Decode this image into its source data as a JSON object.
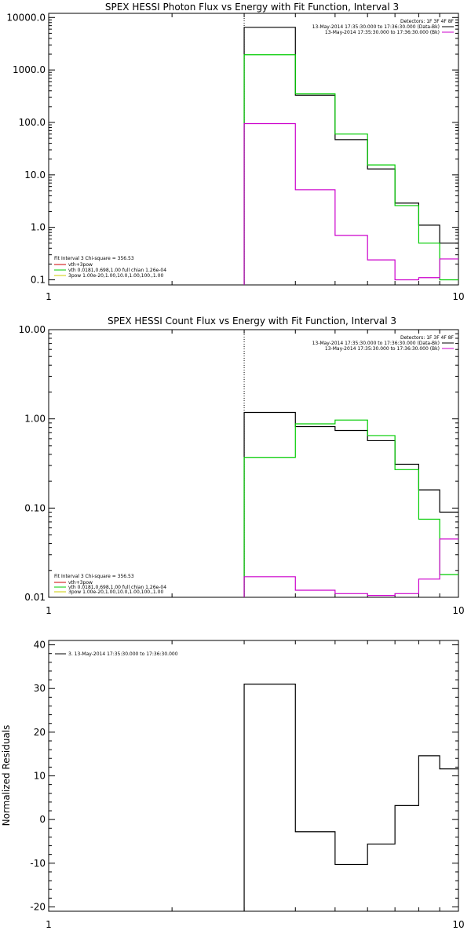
{
  "chart_data": [
    {
      "type": "line",
      "plot_style": "step",
      "title": "SPEX HESSI Photon Flux vs Energy with Fit Function, Interval 3",
      "xscale": "log",
      "yscale": "log",
      "xlim": [
        1,
        10
      ],
      "ylim": [
        0.08,
        12000
      ],
      "xtick_labels": [
        "1",
        "10"
      ],
      "ytick_labels": [
        "0.1",
        "1.0",
        "10.0",
        "100.0",
        "1000.0",
        "10000.0"
      ],
      "ytick_values": [
        0.1,
        1,
        10,
        100,
        1000,
        10000
      ],
      "legend_top_right": {
        "header": "Detectors: 1F 3F 4F 8F",
        "items": [
          {
            "label": "13-May-2014 17:35:30.000 to 17:36:30.000 (Data-Bk)",
            "color": "#000000"
          },
          {
            "label": "13-May-2014 17:35:30.000 to 17:36:30.000 (Bk)",
            "color": "#cc00cc"
          }
        ]
      },
      "legend_bottom_left": {
        "header": "Fit Interval  3   Chi-square = 356.53",
        "items": [
          {
            "label": "vth+3pow",
            "color": "#cc0000"
          },
          {
            "label": "vth 0.0181,0.698,1.00  full chian 1.26e-04",
            "color": "#00cc00"
          },
          {
            "label": "3pow 1.00e-20,1.00,10.0,1.00,100.,1.00",
            "color": "#cccc00"
          }
        ]
      },
      "vline_x": 3,
      "bin_edges": [
        3,
        4,
        5,
        6,
        7,
        8,
        9,
        10
      ],
      "series": [
        {
          "name": "Data-Bk",
          "color": "#000000",
          "values": [
            6500,
            330,
            47,
            13,
            2.9,
            1.1,
            0.5
          ]
        },
        {
          "name": "vth",
          "color": "#00cc00",
          "values": [
            1950,
            350,
            60,
            15.5,
            2.6,
            0.5,
            0.1
          ]
        },
        {
          "name": "Bk",
          "color": "#cc00cc",
          "values": [
            95,
            5.2,
            0.7,
            0.24,
            0.1,
            0.11,
            0.25
          ]
        }
      ]
    },
    {
      "type": "line",
      "plot_style": "step",
      "title": "SPEX HESSI Count Flux vs Energy with Fit Function, Interval 3",
      "xscale": "log",
      "yscale": "log",
      "xlim": [
        1,
        10
      ],
      "ylim": [
        0.01,
        10
      ],
      "xtick_labels": [
        "1",
        "10"
      ],
      "ytick_labels": [
        "0.01",
        "0.10",
        "1.00",
        "10.00"
      ],
      "ytick_values": [
        0.01,
        0.1,
        1,
        10
      ],
      "legend_top_right": {
        "header": "Detectors: 1F 3F 4F 8F",
        "items": [
          {
            "label": "13-May-2014 17:35:30.000 to 17:36:30.000 (Data-Bk)",
            "color": "#000000"
          },
          {
            "label": "13-May-2014 17:35:30.000 to 17:36:30.000 (Bk)",
            "color": "#cc00cc"
          }
        ]
      },
      "legend_bottom_left": {
        "header": "Fit Interval  3   Chi-square = 356.53",
        "items": [
          {
            "label": "vth+3pow",
            "color": "#cc0000"
          },
          {
            "label": "vth 0.0181,0.698,1.00  full chian 1.26e-04",
            "color": "#00cc00"
          },
          {
            "label": "3pow 1.00e-20,1.00,10.0,1.00,100.,1.00",
            "color": "#cccc00"
          }
        ]
      },
      "vline_x": 3,
      "bin_edges": [
        3,
        4,
        5,
        6,
        7,
        8,
        9,
        10
      ],
      "series": [
        {
          "name": "Data-Bk",
          "color": "#000000",
          "values": [
            1.18,
            0.82,
            0.74,
            0.57,
            0.31,
            0.16,
            0.09
          ]
        },
        {
          "name": "vth",
          "color": "#00cc00",
          "values": [
            0.37,
            0.88,
            0.97,
            0.65,
            0.27,
            0.075,
            0.018
          ]
        },
        {
          "name": "Bk",
          "color": "#cc00cc",
          "values": [
            0.017,
            0.012,
            0.011,
            0.0105,
            0.011,
            0.016,
            0.045
          ]
        }
      ]
    },
    {
      "type": "line",
      "plot_style": "step",
      "title": "",
      "ylabel": "Normalized Residuals",
      "xscale": "log",
      "yscale": "linear",
      "xlim": [
        1,
        10
      ],
      "ylim": [
        -21,
        41
      ],
      "xtick_labels": [
        "1",
        "10"
      ],
      "ytick_labels": [
        "-20",
        "-10",
        "0",
        "10",
        "20",
        "30",
        "40"
      ],
      "ytick_values": [
        -20,
        -10,
        0,
        10,
        20,
        30,
        40
      ],
      "legend_top_left": {
        "items": [
          {
            "label": "3. 13-May-2014 17:35:30.000 to 17:36:30.000",
            "color": "#000000"
          }
        ]
      },
      "bin_edges": [
        3,
        4,
        5,
        6,
        7,
        8,
        9,
        10
      ],
      "series": [
        {
          "name": "",
          "color": "#000000",
          "values": [
            31,
            -2.8,
            -10.3,
            -5.6,
            3.2,
            14.6,
            11.6
          ]
        }
      ]
    }
  ]
}
